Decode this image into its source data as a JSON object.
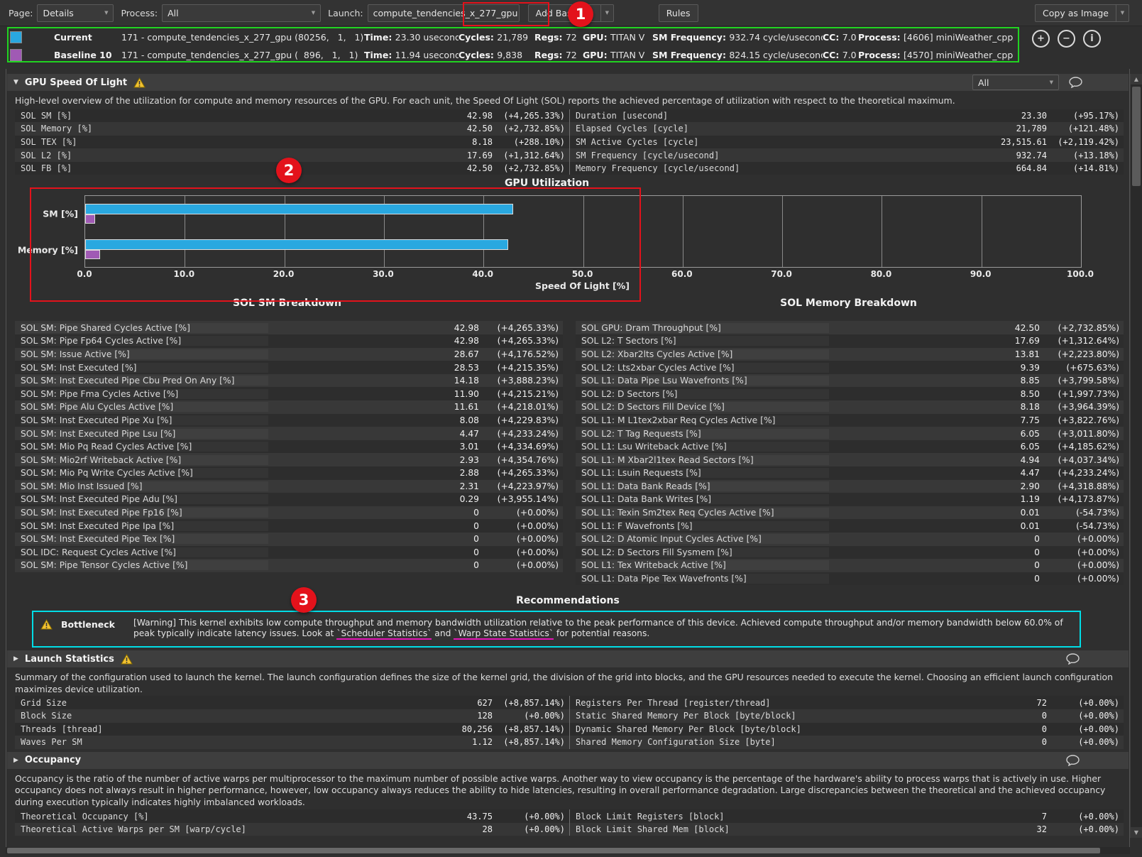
{
  "toolbar": {
    "page_label": "Page:",
    "page_value": "Details",
    "process_label": "Process:",
    "process_value": "All",
    "launch_label": "Launch:",
    "launch_value": "compute_tendencies_x_277_gpu",
    "add_baseline_label": "Add Baseline",
    "rules_label": "Rules",
    "copy_as_image_label": "Copy as Image"
  },
  "icons": {
    "chevron_down": "▼",
    "collapse_expanded": "▼",
    "collapse_collapsed": "▶",
    "scroll_up": "▲",
    "scroll_down": "▼",
    "plus": "+",
    "minus": "−",
    "info": "i"
  },
  "baseline_labels": {
    "time": "Time:",
    "cycles": "Cycles:",
    "regs": "Regs:",
    "gpu": "GPU:",
    "sm_frequency": "SM Frequency:",
    "cc": "CC:",
    "process": "Process:"
  },
  "baselines": [
    {
      "name": "Current",
      "swatch": "#29a8e0",
      "kernel": "171 - compute_tendencies_x_277_gpu (80256,   1,   1)",
      "time": "23.30 usecond",
      "cycles": "21,789",
      "regs": "72",
      "gpu": "TITAN V",
      "sm_frequency": "932.74 cycle/usecond",
      "cc": "7.0",
      "process": "[4606] miniWeather_cpp"
    },
    {
      "name": "Baseline 10",
      "swatch": "#a05ab4",
      "kernel": "171 - compute_tendencies_x_277_gpu (  896,   1,   1)",
      "time": "11.94 usecond",
      "cycles": "9,838",
      "regs": "72",
      "gpu": "TITAN V",
      "sm_frequency": "824.15 cycle/usecond",
      "cc": "7.0",
      "process": "[4570] miniWeather_cpp"
    }
  ],
  "sol_section": {
    "title": "GPU Speed Of Light",
    "filter_value": "All",
    "description": "High-level overview of the utilization for compute and memory resources of the GPU. For each unit, the Speed Of Light (SOL) reports the achieved percentage of utilization with respect to the theoretical maximum.",
    "left_rows": [
      {
        "label": "SOL SM [%]",
        "value": "42.98",
        "delta": "(+4,265.33%)"
      },
      {
        "label": "SOL Memory [%]",
        "value": "42.50",
        "delta": "(+2,732.85%)"
      },
      {
        "label": "SOL TEX [%]",
        "value": "8.18",
        "delta": "(+288.10%)"
      },
      {
        "label": "SOL L2 [%]",
        "value": "17.69",
        "delta": "(+1,312.64%)"
      },
      {
        "label": "SOL FB [%]",
        "value": "42.50",
        "delta": "(+2,732.85%)"
      }
    ],
    "right_rows": [
      {
        "label": "Duration [usecond]",
        "value": "23.30",
        "delta": "(+95.17%)"
      },
      {
        "label": "Elapsed Cycles [cycle]",
        "value": "21,789",
        "delta": "(+121.48%)"
      },
      {
        "label": "SM Active Cycles [cycle]",
        "value": "23,515.61",
        "delta": "(+2,119.42%)"
      },
      {
        "label": "SM Frequency [cycle/usecond]",
        "value": "932.74",
        "delta": "(+13.18%)"
      },
      {
        "label": "Memory Frequency [cycle/usecond]",
        "value": "664.84",
        "delta": "(+14.81%)"
      }
    ]
  },
  "chart_data": {
    "type": "bar",
    "title": "GPU Utilization",
    "categories": [
      "SM [%]",
      "Memory [%]"
    ],
    "series": [
      {
        "name": "Current",
        "color": "#29a8e0",
        "values": [
          42.98,
          42.5
        ]
      },
      {
        "name": "Baseline 10",
        "color": "#a05ab4",
        "values": [
          0.98,
          1.5
        ]
      }
    ],
    "xlabel": "Speed Of Light [%]",
    "xlim": [
      0,
      100
    ],
    "xticks": [
      0,
      10,
      20,
      30,
      40,
      50,
      60,
      70,
      80,
      90,
      100
    ],
    "xtick_labels": [
      "0.0",
      "10.0",
      "20.0",
      "30.0",
      "40.0",
      "50.0",
      "60.0",
      "70.0",
      "80.0",
      "90.0",
      "100.0"
    ],
    "grid": true,
    "legend": "none"
  },
  "sm_breakdown": {
    "title": "SOL SM Breakdown",
    "rows": [
      {
        "label": "SOL SM: Pipe Shared Cycles Active [%]",
        "value": "42.98",
        "delta": "(+4,265.33%)"
      },
      {
        "label": "SOL SM: Pipe Fp64 Cycles Active [%]",
        "value": "42.98",
        "delta": "(+4,265.33%)"
      },
      {
        "label": "SOL SM: Issue Active [%]",
        "value": "28.67",
        "delta": "(+4,176.52%)"
      },
      {
        "label": "SOL SM: Inst Executed [%]",
        "value": "28.53",
        "delta": "(+4,215.35%)"
      },
      {
        "label": "SOL SM: Inst Executed Pipe Cbu Pred On Any [%]",
        "value": "14.18",
        "delta": "(+3,888.23%)"
      },
      {
        "label": "SOL SM: Pipe Fma Cycles Active [%]",
        "value": "11.90",
        "delta": "(+4,215.21%)"
      },
      {
        "label": "SOL SM: Pipe Alu Cycles Active [%]",
        "value": "11.61",
        "delta": "(+4,218.01%)"
      },
      {
        "label": "SOL SM: Inst Executed Pipe Xu [%]",
        "value": "8.08",
        "delta": "(+4,229.83%)"
      },
      {
        "label": "SOL SM: Inst Executed Pipe Lsu [%]",
        "value": "4.47",
        "delta": "(+4,233.24%)"
      },
      {
        "label": "SOL SM: Mio Pq Read Cycles Active [%]",
        "value": "3.01",
        "delta": "(+4,334.69%)"
      },
      {
        "label": "SOL SM: Mio2rf Writeback Active [%]",
        "value": "2.93",
        "delta": "(+4,354.76%)"
      },
      {
        "label": "SOL SM: Mio Pq Write Cycles Active [%]",
        "value": "2.88",
        "delta": "(+4,265.33%)"
      },
      {
        "label": "SOL SM: Mio Inst Issued [%]",
        "value": "2.31",
        "delta": "(+4,223.97%)"
      },
      {
        "label": "SOL SM: Inst Executed Pipe Adu [%]",
        "value": "0.29",
        "delta": "(+3,955.14%)"
      },
      {
        "label": "SOL SM: Inst Executed Pipe Fp16 [%]",
        "value": "0",
        "delta": "(+0.00%)"
      },
      {
        "label": "SOL SM: Inst Executed Pipe Ipa [%]",
        "value": "0",
        "delta": "(+0.00%)"
      },
      {
        "label": "SOL SM: Inst Executed Pipe Tex [%]",
        "value": "0",
        "delta": "(+0.00%)"
      },
      {
        "label": "SOL IDC: Request Cycles Active [%]",
        "value": "0",
        "delta": "(+0.00%)"
      },
      {
        "label": "SOL SM: Pipe Tensor Cycles Active [%]",
        "value": "0",
        "delta": "(+0.00%)"
      }
    ]
  },
  "memory_breakdown": {
    "title": "SOL Memory Breakdown",
    "rows": [
      {
        "label": "SOL GPU: Dram Throughput [%]",
        "value": "42.50",
        "delta": "(+2,732.85%)"
      },
      {
        "label": "SOL L2: T Sectors [%]",
        "value": "17.69",
        "delta": "(+1,312.64%)"
      },
      {
        "label": "SOL L2: Xbar2lts Cycles Active [%]",
        "value": "13.81",
        "delta": "(+2,223.80%)"
      },
      {
        "label": "SOL L2: Lts2xbar Cycles Active [%]",
        "value": "9.39",
        "delta": "(+675.63%)"
      },
      {
        "label": "SOL L1: Data Pipe Lsu Wavefronts [%]",
        "value": "8.85",
        "delta": "(+3,799.58%)"
      },
      {
        "label": "SOL L2: D Sectors [%]",
        "value": "8.50",
        "delta": "(+1,997.73%)"
      },
      {
        "label": "SOL L2: D Sectors Fill Device [%]",
        "value": "8.18",
        "delta": "(+3,964.39%)"
      },
      {
        "label": "SOL L1: M L1tex2xbar Req Cycles Active [%]",
        "value": "7.75",
        "delta": "(+3,822.76%)"
      },
      {
        "label": "SOL L2: T Tag Requests [%]",
        "value": "6.05",
        "delta": "(+3,011.80%)"
      },
      {
        "label": "SOL L1: Lsu Writeback Active [%]",
        "value": "6.05",
        "delta": "(+4,185.62%)"
      },
      {
        "label": "SOL L1: M Xbar2l1tex Read Sectors [%]",
        "value": "4.94",
        "delta": "(+4,037.34%)"
      },
      {
        "label": "SOL L1: Lsuin Requests [%]",
        "value": "4.47",
        "delta": "(+4,233.24%)"
      },
      {
        "label": "SOL L1: Data Bank Reads [%]",
        "value": "2.90",
        "delta": "(+4,318.88%)"
      },
      {
        "label": "SOL L1: Data Bank Writes [%]",
        "value": "1.19",
        "delta": "(+4,173.87%)"
      },
      {
        "label": "SOL L1: Texin Sm2tex Req Cycles Active [%]",
        "value": "0.01",
        "delta": "(-54.73%)"
      },
      {
        "label": "SOL L1: F Wavefronts [%]",
        "value": "0.01",
        "delta": "(-54.73%)"
      },
      {
        "label": "SOL L2: D Atomic Input Cycles Active [%]",
        "value": "0",
        "delta": "(+0.00%)"
      },
      {
        "label": "SOL L2: D Sectors Fill Sysmem [%]",
        "value": "0",
        "delta": "(+0.00%)"
      },
      {
        "label": "SOL L1: Tex Writeback Active [%]",
        "value": "0",
        "delta": "(+0.00%)"
      },
      {
        "label": "SOL L1: Data Pipe Tex Wavefronts [%]",
        "value": "0",
        "delta": "(+0.00%)"
      }
    ]
  },
  "recommendations": {
    "title": "Recommendations",
    "bottleneck_label": "Bottleneck",
    "text_part1": "[Warning] This kernel exhibits low compute throughput and memory bandwidth utilization relative to the peak performance of this device. Achieved compute throughput and/or memory bandwidth below 60.0% of peak typically indicate latency issues. Look at ",
    "link1": "`Scheduler Statistics`",
    "text_part2": " and ",
    "link2": "`Warp State Statistics`",
    "text_part3": " for potential reasons."
  },
  "launch_section": {
    "title": "Launch Statistics",
    "description": "Summary of the configuration used to launch the kernel. The launch configuration defines the size of the kernel grid, the division of the grid into blocks, and the GPU resources needed to execute the kernel. Choosing an efficient launch configuration maximizes device utilization.",
    "left_rows": [
      {
        "label": "Grid Size",
        "value": "627",
        "delta": "(+8,857.14%)"
      },
      {
        "label": "Block Size",
        "value": "128",
        "delta": "(+0.00%)"
      },
      {
        "label": "Threads [thread]",
        "value": "80,256",
        "delta": "(+8,857.14%)"
      },
      {
        "label": "Waves Per SM",
        "value": "1.12",
        "delta": "(+8,857.14%)"
      }
    ],
    "right_rows": [
      {
        "label": "Registers Per Thread [register/thread]",
        "value": "72",
        "delta": "(+0.00%)"
      },
      {
        "label": "Static Shared Memory Per Block [byte/block]",
        "value": "0",
        "delta": "(+0.00%)"
      },
      {
        "label": "Dynamic Shared Memory Per Block [byte/block]",
        "value": "0",
        "delta": "(+0.00%)"
      },
      {
        "label": "Shared Memory Configuration Size [byte]",
        "value": "0",
        "delta": "(+0.00%)"
      }
    ]
  },
  "occupancy_section": {
    "title": "Occupancy",
    "description": "Occupancy is the ratio of the number of active warps per multiprocessor to the maximum number of possible active warps. Another way to view occupancy is the percentage of the hardware's ability to process warps that is actively in use. Higher occupancy does not always result in higher performance, however, low occupancy always reduces the ability to hide latencies, resulting in overall performance degradation. Large discrepancies between the theoretical and the achieved occupancy during execution typically indicates highly imbalanced workloads.",
    "left_rows": [
      {
        "label": "Theoretical Occupancy [%]",
        "value": "43.75",
        "delta": "(+0.00%)"
      },
      {
        "label": "Theoretical Active Warps per SM [warp/cycle]",
        "value": "28",
        "delta": "(+0.00%)"
      }
    ],
    "right_rows": [
      {
        "label": "Block Limit Registers [block]",
        "value": "7",
        "delta": "(+0.00%)"
      },
      {
        "label": "Block Limit Shared Mem [block]",
        "value": "32",
        "delta": "(+0.00%)"
      }
    ]
  },
  "annotations": {
    "badges": [
      "1",
      "2",
      "3"
    ]
  }
}
